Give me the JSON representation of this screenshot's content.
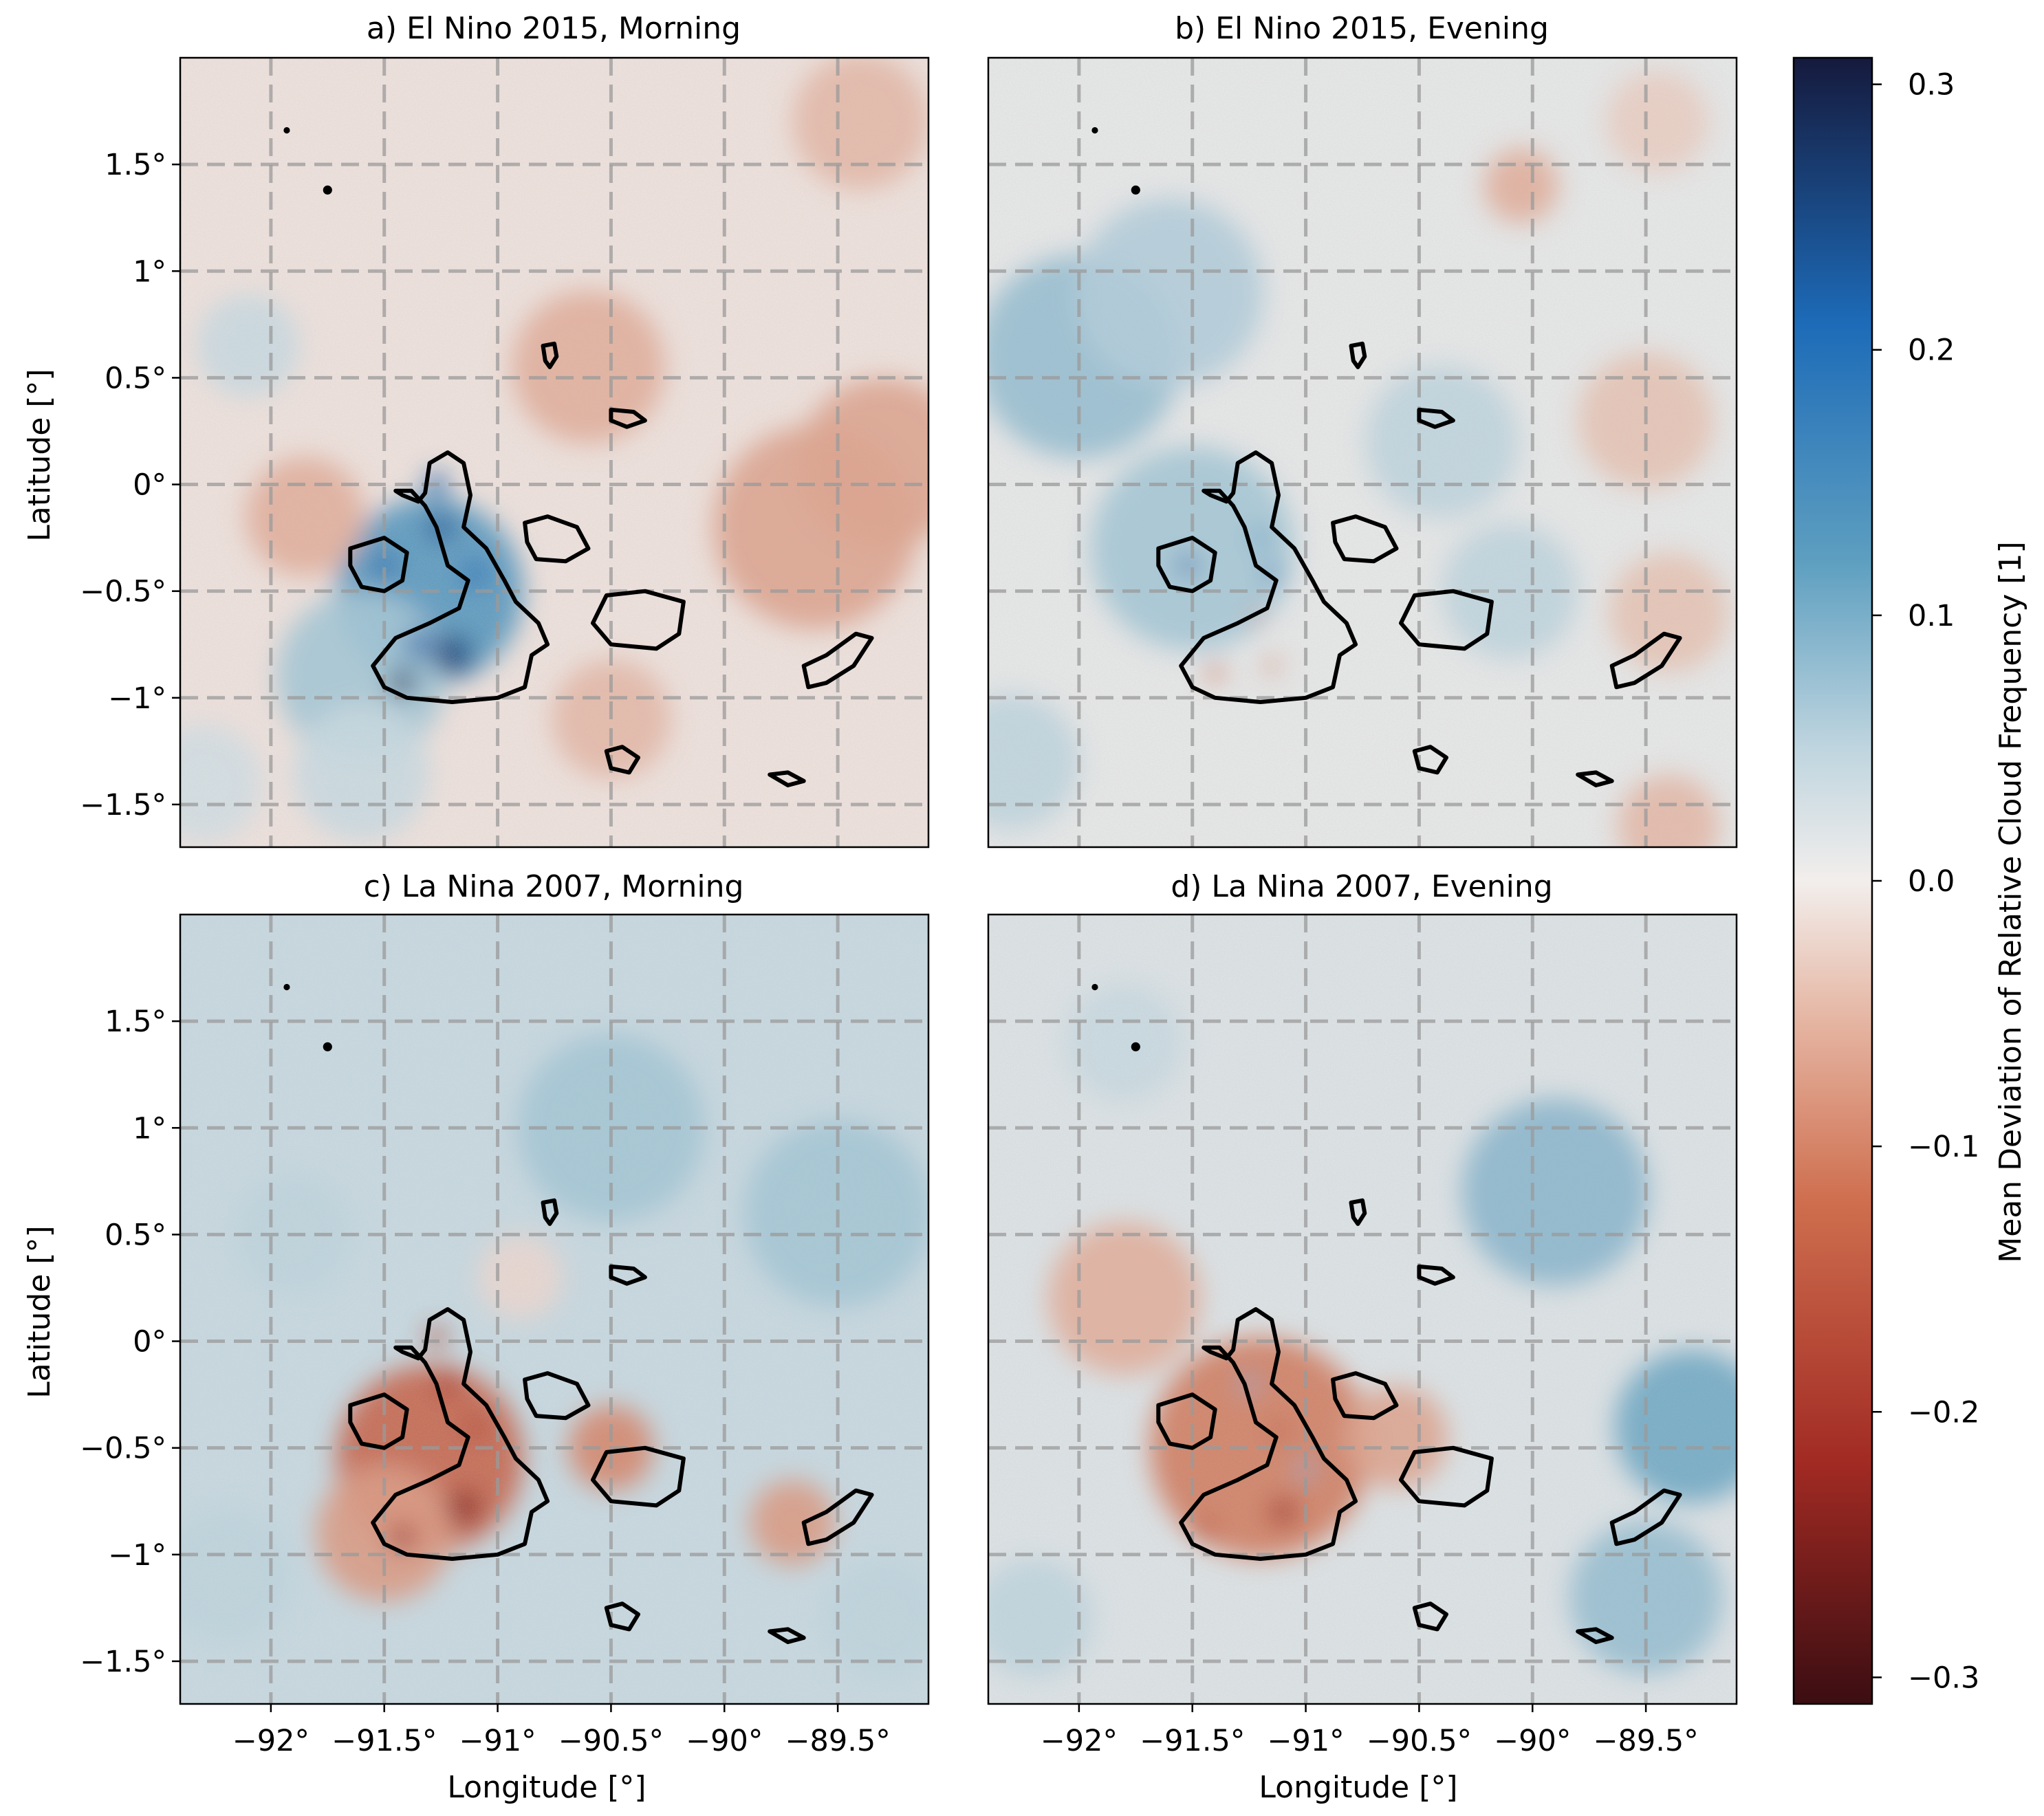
{
  "chart_data": {
    "type": "heatmap",
    "figure": {
      "colorbar": {
        "label": "Mean Deviation of Relative Cloud Frequency [1]",
        "range": [
          -0.31,
          0.31
        ],
        "ticks": [
          0.3,
          0.2,
          0.1,
          0.0,
          -0.1,
          -0.2,
          -0.3
        ],
        "tick_labels": [
          "0.3",
          "0.2",
          "0.1",
          "0.0",
          "−0.1",
          "−0.2",
          "−0.3"
        ],
        "colormap_stops": [
          {
            "v": -0.31,
            "color": "#3b0d12"
          },
          {
            "v": -0.22,
            "color": "#a12a23"
          },
          {
            "v": -0.12,
            "color": "#cf6f4f"
          },
          {
            "v": -0.05,
            "color": "#e6b8a6"
          },
          {
            "v": 0.0,
            "color": "#f2eeec"
          },
          {
            "v": 0.05,
            "color": "#bfd5df"
          },
          {
            "v": 0.12,
            "color": "#5e9fc0"
          },
          {
            "v": 0.21,
            "color": "#1d6bb8"
          },
          {
            "v": 0.31,
            "color": "#151a3d"
          }
        ]
      },
      "xlim": [
        -92.4,
        -89.1
      ],
      "ylim": [
        -1.7,
        2.0
      ],
      "x_ticks": [
        -92,
        -91.5,
        -91,
        -90.5,
        -90,
        -89.5
      ],
      "x_tick_labels": [
        "−92°",
        "−91.5°",
        "−91°",
        "−90.5°",
        "−90°",
        "−89.5°"
      ],
      "y_ticks": [
        1.5,
        1.0,
        0.5,
        0.0,
        -0.5,
        -1.0,
        -1.5
      ],
      "y_tick_labels": [
        "1.5°",
        "1°",
        "0.5°",
        "0°",
        "−0.5°",
        "−1°",
        "−1.5°"
      ],
      "xlabel": "Longitude [°]",
      "ylabel": "Latitude [°]",
      "grid": "dashed"
    },
    "panels": [
      {
        "id": "a",
        "title": "a) El Nino 2015, Morning",
        "background": -0.01,
        "blobs": [
          {
            "lon": -91.3,
            "lat": -0.5,
            "r": 0.55,
            "v": 0.14
          },
          {
            "lon": -91.6,
            "lat": -0.9,
            "r": 0.5,
            "v": 0.07
          },
          {
            "lon": -91.2,
            "lat": -0.8,
            "r": 0.12,
            "v": 0.26
          },
          {
            "lon": -91.42,
            "lat": -0.93,
            "r": 0.08,
            "v": 0.28
          },
          {
            "lon": -91.25,
            "lat": -0.2,
            "r": 0.08,
            "v": 0.24
          },
          {
            "lon": -91.27,
            "lat": 0.0,
            "r": 0.07,
            "v": 0.22
          },
          {
            "lon": -91.5,
            "lat": -0.38,
            "r": 0.07,
            "v": 0.22
          },
          {
            "lon": -91.1,
            "lat": -0.42,
            "r": 0.08,
            "v": 0.2
          },
          {
            "lon": -91.35,
            "lat": -0.75,
            "r": 0.08,
            "v": 0.22
          },
          {
            "lon": -89.6,
            "lat": -0.2,
            "r": 0.6,
            "v": -0.07
          },
          {
            "lon": -89.3,
            "lat": 0.1,
            "r": 0.5,
            "v": -0.07
          },
          {
            "lon": -91.85,
            "lat": -0.15,
            "r": 0.35,
            "v": -0.06
          },
          {
            "lon": -90.6,
            "lat": 0.55,
            "r": 0.45,
            "v": -0.06
          },
          {
            "lon": -89.4,
            "lat": 1.7,
            "r": 0.4,
            "v": -0.05
          },
          {
            "lon": -90.5,
            "lat": -1.1,
            "r": 0.35,
            "v": -0.05
          },
          {
            "lon": -92.1,
            "lat": 0.65,
            "r": 0.3,
            "v": 0.04
          },
          {
            "lon": -92.3,
            "lat": -1.4,
            "r": 0.35,
            "v": 0.03
          },
          {
            "lon": -91.6,
            "lat": -1.35,
            "r": 0.4,
            "v": 0.04
          }
        ]
      },
      {
        "id": "b",
        "title": "b) El Nino 2015, Evening",
        "background": 0.01,
        "blobs": [
          {
            "lon": -92.0,
            "lat": 0.6,
            "r": 0.6,
            "v": 0.08
          },
          {
            "lon": -91.6,
            "lat": 0.9,
            "r": 0.55,
            "v": 0.06
          },
          {
            "lon": -91.5,
            "lat": -0.3,
            "r": 0.6,
            "v": 0.07
          },
          {
            "lon": -90.4,
            "lat": 0.2,
            "r": 0.45,
            "v": 0.05
          },
          {
            "lon": -90.1,
            "lat": -0.5,
            "r": 0.4,
            "v": 0.05
          },
          {
            "lon": -92.3,
            "lat": -1.3,
            "r": 0.4,
            "v": 0.05
          },
          {
            "lon": -91.52,
            "lat": -0.38,
            "r": 0.06,
            "v": 0.22
          },
          {
            "lon": -91.15,
            "lat": -0.42,
            "r": 0.05,
            "v": 0.18
          },
          {
            "lon": -91.2,
            "lat": -0.25,
            "r": 0.05,
            "v": 0.15
          },
          {
            "lon": -90.05,
            "lat": 1.4,
            "r": 0.22,
            "v": -0.06
          },
          {
            "lon": -89.5,
            "lat": 0.3,
            "r": 0.4,
            "v": -0.04
          },
          {
            "lon": -89.4,
            "lat": -0.6,
            "r": 0.35,
            "v": -0.04
          },
          {
            "lon": -89.4,
            "lat": -1.6,
            "r": 0.3,
            "v": -0.05
          },
          {
            "lon": -89.45,
            "lat": 1.7,
            "r": 0.3,
            "v": -0.03
          },
          {
            "lon": -91.4,
            "lat": -0.88,
            "r": 0.05,
            "v": -0.12
          },
          {
            "lon": -91.15,
            "lat": -0.85,
            "r": 0.04,
            "v": -0.12
          },
          {
            "lon": -91.22,
            "lat": -0.62,
            "r": 0.04,
            "v": -0.1
          }
        ]
      },
      {
        "id": "c",
        "title": "c) La Nina 2007, Morning",
        "background": 0.04,
        "blobs": [
          {
            "lon": -91.3,
            "lat": -0.55,
            "r": 0.55,
            "v": -0.14
          },
          {
            "lon": -91.5,
            "lat": -0.9,
            "r": 0.4,
            "v": -0.08
          },
          {
            "lon": -90.5,
            "lat": -0.5,
            "r": 0.25,
            "v": -0.1
          },
          {
            "lon": -89.7,
            "lat": -0.85,
            "r": 0.25,
            "v": -0.08
          },
          {
            "lon": -91.15,
            "lat": -0.78,
            "r": 0.1,
            "v": -0.24
          },
          {
            "lon": -91.42,
            "lat": -0.92,
            "r": 0.08,
            "v": -0.2
          },
          {
            "lon": -91.22,
            "lat": -0.2,
            "r": 0.07,
            "v": -0.2
          },
          {
            "lon": -91.27,
            "lat": 0.02,
            "r": 0.06,
            "v": -0.18
          },
          {
            "lon": -91.1,
            "lat": -0.4,
            "r": 0.07,
            "v": -0.18
          },
          {
            "lon": -90.5,
            "lat": 1.0,
            "r": 0.55,
            "v": 0.07
          },
          {
            "lon": -89.5,
            "lat": 0.6,
            "r": 0.55,
            "v": 0.07
          },
          {
            "lon": -91.9,
            "lat": 0.5,
            "r": 0.35,
            "v": 0.05
          },
          {
            "lon": -92.2,
            "lat": -1.1,
            "r": 0.4,
            "v": 0.05
          },
          {
            "lon": -89.3,
            "lat": -1.3,
            "r": 0.35,
            "v": 0.05
          },
          {
            "lon": -90.9,
            "lat": 0.3,
            "r": 0.25,
            "v": -0.02
          }
        ]
      },
      {
        "id": "d",
        "title": "d) La Nina 2007, Evening",
        "background": 0.02,
        "blobs": [
          {
            "lon": -91.2,
            "lat": -0.5,
            "r": 0.65,
            "v": -0.11
          },
          {
            "lon": -91.8,
            "lat": 0.2,
            "r": 0.45,
            "v": -0.06
          },
          {
            "lon": -90.6,
            "lat": -0.45,
            "r": 0.3,
            "v": -0.07
          },
          {
            "lon": -91.1,
            "lat": -0.8,
            "r": 0.08,
            "v": -0.22
          },
          {
            "lon": -91.12,
            "lat": -0.42,
            "r": 0.05,
            "v": -0.16
          },
          {
            "lon": -91.45,
            "lat": -0.88,
            "r": 0.07,
            "v": -0.15
          },
          {
            "lon": -89.9,
            "lat": 0.7,
            "r": 0.55,
            "v": 0.09
          },
          {
            "lon": -89.3,
            "lat": -0.4,
            "r": 0.45,
            "v": 0.11
          },
          {
            "lon": -89.5,
            "lat": -1.2,
            "r": 0.45,
            "v": 0.08
          },
          {
            "lon": -92.2,
            "lat": -1.3,
            "r": 0.35,
            "v": 0.05
          },
          {
            "lon": -91.8,
            "lat": 1.4,
            "r": 0.35,
            "v": 0.04
          },
          {
            "lon": -91.25,
            "lat": -0.2,
            "r": 0.05,
            "v": 0.1
          },
          {
            "lon": -91.0,
            "lat": -0.6,
            "r": 0.05,
            "v": 0.1
          }
        ]
      }
    ],
    "coastlines": [
      {
        "name": "Isabela",
        "points": [
          [
            -91.42,
            -0.05
          ],
          [
            -91.35,
            -0.08
          ],
          [
            -91.32,
            -0.04
          ],
          [
            -91.3,
            0.1
          ],
          [
            -91.22,
            0.15
          ],
          [
            -91.15,
            0.1
          ],
          [
            -91.12,
            -0.05
          ],
          [
            -91.15,
            -0.2
          ],
          [
            -91.05,
            -0.3
          ],
          [
            -90.97,
            -0.45
          ],
          [
            -90.92,
            -0.55
          ],
          [
            -90.82,
            -0.65
          ],
          [
            -90.78,
            -0.75
          ],
          [
            -90.85,
            -0.8
          ],
          [
            -90.88,
            -0.95
          ],
          [
            -91.0,
            -1.0
          ],
          [
            -91.2,
            -1.02
          ],
          [
            -91.4,
            -1.0
          ],
          [
            -91.5,
            -0.95
          ],
          [
            -91.55,
            -0.85
          ],
          [
            -91.45,
            -0.72
          ],
          [
            -91.3,
            -0.65
          ],
          [
            -91.17,
            -0.58
          ],
          [
            -91.13,
            -0.45
          ],
          [
            -91.22,
            -0.38
          ],
          [
            -91.27,
            -0.2
          ],
          [
            -91.32,
            -0.1
          ],
          [
            -91.38,
            -0.03
          ],
          [
            -91.45,
            -0.03
          ],
          [
            -91.42,
            -0.05
          ]
        ]
      },
      {
        "name": "Fernandina",
        "points": [
          [
            -91.65,
            -0.3
          ],
          [
            -91.5,
            -0.25
          ],
          [
            -91.4,
            -0.32
          ],
          [
            -91.42,
            -0.45
          ],
          [
            -91.5,
            -0.5
          ],
          [
            -91.6,
            -0.48
          ],
          [
            -91.65,
            -0.38
          ],
          [
            -91.65,
            -0.3
          ]
        ]
      },
      {
        "name": "Santiago",
        "points": [
          [
            -90.88,
            -0.18
          ],
          [
            -90.78,
            -0.15
          ],
          [
            -90.65,
            -0.2
          ],
          [
            -90.6,
            -0.3
          ],
          [
            -90.7,
            -0.36
          ],
          [
            -90.83,
            -0.35
          ],
          [
            -90.87,
            -0.27
          ],
          [
            -90.88,
            -0.18
          ]
        ]
      },
      {
        "name": "Santa Cruz",
        "points": [
          [
            -90.52,
            -0.52
          ],
          [
            -90.35,
            -0.5
          ],
          [
            -90.18,
            -0.55
          ],
          [
            -90.2,
            -0.7
          ],
          [
            -90.3,
            -0.77
          ],
          [
            -90.5,
            -0.75
          ],
          [
            -90.58,
            -0.65
          ],
          [
            -90.52,
            -0.52
          ]
        ]
      },
      {
        "name": "San Cristobal",
        "points": [
          [
            -89.65,
            -0.85
          ],
          [
            -89.55,
            -0.8
          ],
          [
            -89.42,
            -0.7
          ],
          [
            -89.35,
            -0.72
          ],
          [
            -89.43,
            -0.85
          ],
          [
            -89.55,
            -0.93
          ],
          [
            -89.63,
            -0.95
          ],
          [
            -89.65,
            -0.85
          ]
        ]
      },
      {
        "name": "Floreana",
        "points": [
          [
            -90.52,
            -1.25
          ],
          [
            -90.45,
            -1.23
          ],
          [
            -90.38,
            -1.28
          ],
          [
            -90.42,
            -1.35
          ],
          [
            -90.5,
            -1.33
          ],
          [
            -90.52,
            -1.25
          ]
        ]
      },
      {
        "name": "Espanola",
        "points": [
          [
            -89.8,
            -1.36
          ],
          [
            -89.72,
            -1.35
          ],
          [
            -89.65,
            -1.39
          ],
          [
            -89.72,
            -1.41
          ],
          [
            -89.8,
            -1.36
          ]
        ]
      },
      {
        "name": "Pinta",
        "points": [
          [
            -90.8,
            0.65
          ],
          [
            -90.75,
            0.66
          ],
          [
            -90.74,
            0.6
          ],
          [
            -90.77,
            0.55
          ],
          [
            -90.79,
            0.58
          ],
          [
            -90.8,
            0.65
          ]
        ]
      },
      {
        "name": "Genovesa",
        "points": [
          [
            -90.5,
            0.35
          ],
          [
            -90.4,
            0.34
          ],
          [
            -90.35,
            0.3
          ],
          [
            -90.43,
            0.27
          ],
          [
            -90.5,
            0.3
          ],
          [
            -90.5,
            0.35
          ]
        ]
      }
    ],
    "small_islands": [
      {
        "lon": -91.93,
        "lat": 1.66,
        "r": 0.014
      },
      {
        "lon": -91.75,
        "lat": 1.38,
        "r": 0.02
      }
    ]
  }
}
